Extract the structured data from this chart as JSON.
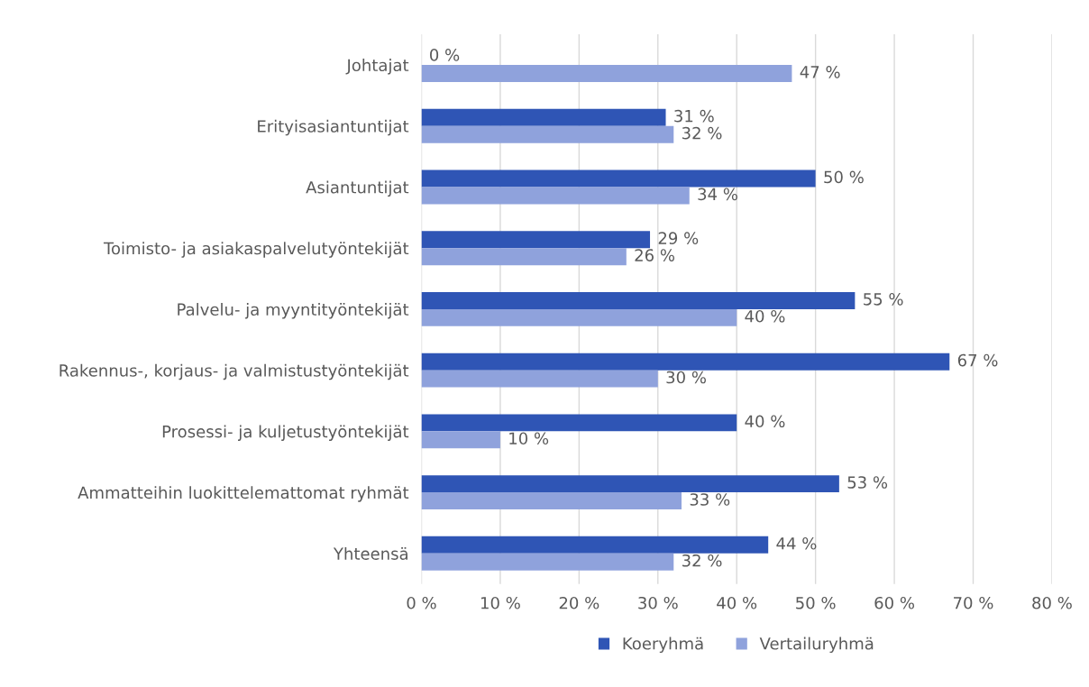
{
  "chart_data": {
    "type": "bar",
    "orientation": "horizontal",
    "categories": [
      "Johtajat",
      "Erityisasiantuntijat",
      "Asiantuntijat",
      "Toimisto- ja asiakaspalvelutyöntekijät",
      "Palvelu- ja myyntityöntekijät",
      "Rakennus-, korjaus- ja valmistustyöntekijät",
      "Prosessi- ja kuljetustyöntekijät",
      "Ammatteihin luokittelemattomat ryhmät",
      "Yhteensä"
    ],
    "series": [
      {
        "name": "Koeryhmä",
        "color": "#2f55b5",
        "values": [
          0,
          31,
          50,
          29,
          55,
          67,
          40,
          53,
          44
        ],
        "value_labels": [
          "0 %",
          "31 %",
          "50 %",
          "29 %",
          "55 %",
          "67 %",
          "40 %",
          "53 %",
          "44 %"
        ]
      },
      {
        "name": "Vertailuryhmä",
        "color": "#8fa2dc",
        "values": [
          47,
          32,
          34,
          26,
          40,
          30,
          10,
          33,
          32
        ],
        "value_labels": [
          "47 %",
          "32 %",
          "34 %",
          "26 %",
          "40 %",
          "30 %",
          "10 %",
          "33 %",
          "32 %"
        ]
      }
    ],
    "xlim": [
      0,
      80
    ],
    "xticks": [
      {
        "value": 0,
        "label": "0 %"
      },
      {
        "value": 10,
        "label": "10 %"
      },
      {
        "value": 20,
        "label": "20 %"
      },
      {
        "value": 30,
        "label": "30 %"
      },
      {
        "value": 40,
        "label": "40 %"
      },
      {
        "value": 50,
        "label": "50 %"
      },
      {
        "value": 60,
        "label": "60 %"
      },
      {
        "value": 70,
        "label": "70 %"
      },
      {
        "value": 80,
        "label": "80 %"
      }
    ],
    "grid": "x",
    "legend": "bottom"
  }
}
